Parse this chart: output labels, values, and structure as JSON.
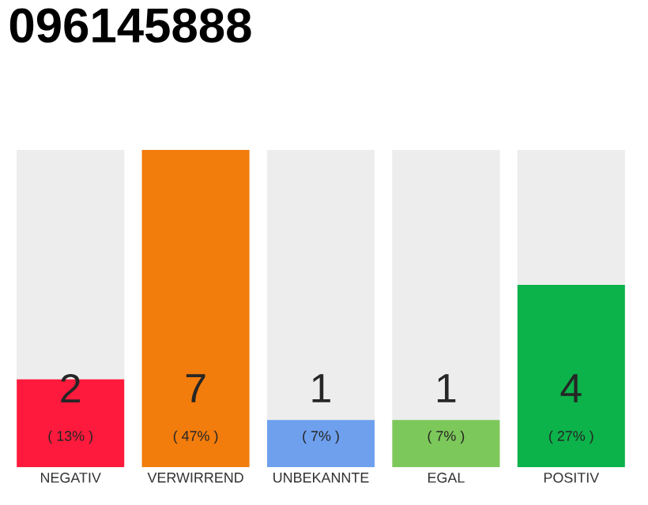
{
  "chart_data": {
    "type": "bar",
    "title": "096145888",
    "categories": [
      "NEGATIV",
      "VERWIRREND",
      "UNBEKANNTE",
      "EGAL",
      "POSITIV"
    ],
    "values": [
      13,
      47,
      7,
      7,
      27
    ],
    "colors": [
      "#fe1a3c",
      "#f27c0c",
      "#6ea0ee",
      "#7dc85a",
      "#0cb24a"
    ],
    "value_labels": [
      "( 13% )",
      "( 47% )",
      "( 7% )",
      "( 7% )",
      "( 27% )"
    ],
    "annotations": [
      "2",
      "7",
      "1",
      "1",
      "4"
    ],
    "tick_labels": "x"
  }
}
